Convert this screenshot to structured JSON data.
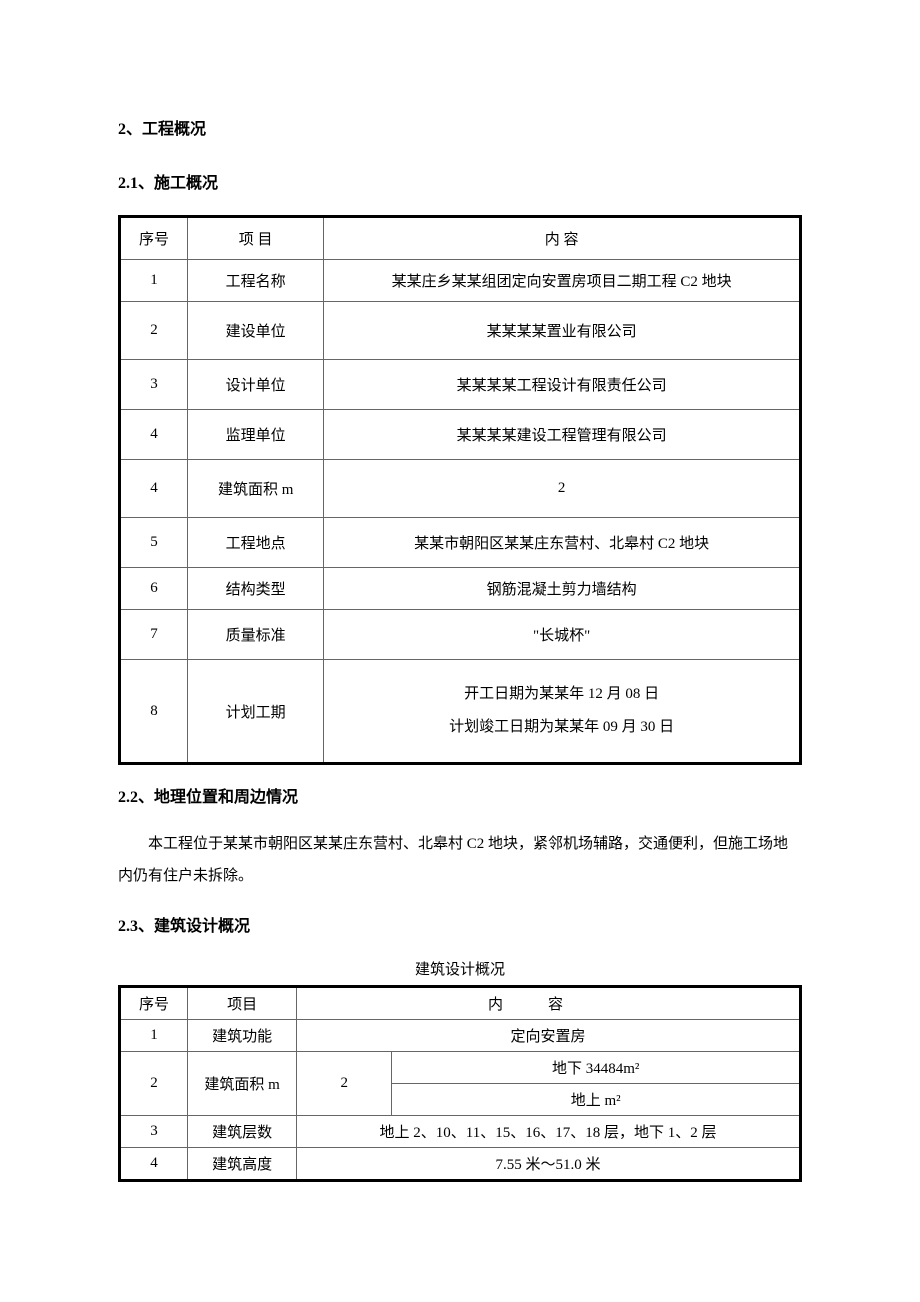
{
  "headings": {
    "h2": "2、工程概况",
    "h3_1": "2.1、施工概况",
    "h3_2": "2.2、地理位置和周边情况",
    "h3_3": "2.3、建筑设计概况"
  },
  "table1": {
    "header": {
      "col1": "序号",
      "col2": "项 目",
      "col3": "内 容"
    },
    "rows": [
      {
        "seq": "1",
        "item": "工程名称",
        "content": "某某庄乡某某组团定向安置房项目二期工程 C2 地块"
      },
      {
        "seq": "2",
        "item": "建设单位",
        "content": "某某某某置业有限公司"
      },
      {
        "seq": "3",
        "item": "设计单位",
        "content": "某某某某工程设计有限责任公司"
      },
      {
        "seq": "4",
        "item": "监理单位",
        "content": "某某某某建设工程管理有限公司"
      },
      {
        "seq": "4",
        "item": "建筑面积 m",
        "content": "2"
      },
      {
        "seq": "5",
        "item": "工程地点",
        "content": "某某市朝阳区某某庄东营村、北皋村 C2 地块"
      },
      {
        "seq": "6",
        "item": "结构类型",
        "content": "钢筋混凝土剪力墙结构"
      },
      {
        "seq": "7",
        "item": "质量标准",
        "content": "\"长城杯\""
      },
      {
        "seq": "8",
        "item": "计划工期",
        "content_line1": "开工日期为某某年 12 月 08 日",
        "content_line2": "计划竣工日期为某某年 09 月 30 日"
      }
    ]
  },
  "body_text": "本工程位于某某市朝阳区某某庄东营村、北皋村 C2 地块，紧邻机场辅路，交通便利，但施工场地内仍有住户未拆除。",
  "table2_caption": "建筑设计概况",
  "table2": {
    "header": {
      "col1": "序号",
      "col2": "项目",
      "col3": "内容"
    },
    "rows": {
      "r1": {
        "seq": "1",
        "item": "建筑功能",
        "content": "定向安置房"
      },
      "r2": {
        "seq": "2",
        "item": "建筑面积 m",
        "mid": "2",
        "content_a": "地下 34484m²",
        "content_b": "地上 m²"
      },
      "r3": {
        "seq": "3",
        "item": "建筑层数",
        "content": "地上 2、10、11、15、16、17、18 层，地下 1、2 层"
      },
      "r4": {
        "seq": "4",
        "item": "建筑高度",
        "content": "7.55 米～51.0 米"
      }
    }
  },
  "styling": {
    "page_background": "#ffffff",
    "text_color": "#000000",
    "table_outer_border_color": "#000000",
    "table_outer_border_width": 3,
    "table_inner_border_color": "#666666",
    "table_inner_border_width": 1,
    "heading_fontsize": 16,
    "body_fontsize": 15,
    "table_fontsize": 15,
    "heading_fontweight": "bold",
    "font_family": "SimSun"
  }
}
